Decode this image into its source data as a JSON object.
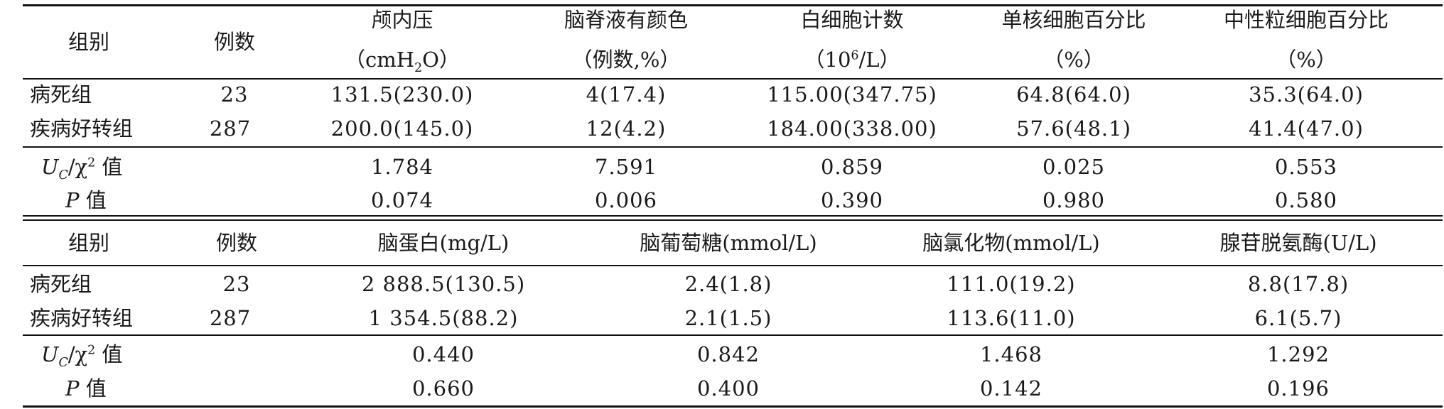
{
  "table1": {
    "header": {
      "group": "组别",
      "count": "例数",
      "icp": {
        "line1": "颅内压",
        "unit_pre": "（cmH",
        "unit_sub": "2",
        "unit_post": "O）"
      },
      "csf_color": {
        "line1": "脑脊液有颜色",
        "line2": "（例数,%）"
      },
      "wbc": {
        "line1": "白细胞计数",
        "unit_pre": "（10",
        "unit_sup": "6",
        "unit_post": "/L）"
      },
      "mono": {
        "line1": "单核细胞百分比",
        "line2": "（%）"
      },
      "neut": {
        "line1": "中性粒细胞百分比",
        "line2": "（%）"
      }
    },
    "rows": [
      {
        "group": "病死组",
        "count": "23",
        "icp": "131.5(230.0)",
        "csf_color": "4(17.4)",
        "wbc": "115.00(347.75)",
        "mono": "64.8(64.0)",
        "neut": "35.3(64.0)"
      },
      {
        "group": "疾病好转组",
        "count": "287",
        "icp": "200.0(145.0)",
        "csf_color": "12(4.2)",
        "wbc": "184.00(338.00)",
        "mono": "57.6(48.1)",
        "neut": "41.4(47.0)"
      }
    ],
    "stat": {
      "label_u": "U",
      "label_c": "C",
      "label_rest": "/χ",
      "label_sup": "2",
      "label_tail": " 值",
      "icp": "1.784",
      "csf_color": "7.591",
      "wbc": "0.859",
      "mono": "0.025",
      "neut": "0.553"
    },
    "p": {
      "label_p": "P",
      "label_tail": " 值",
      "icp": "0.074",
      "csf_color": "0.006",
      "wbc": "0.390",
      "mono": "0.980",
      "neut": "0.580"
    }
  },
  "table2": {
    "header": {
      "group": "组别",
      "count": "例数",
      "protein": "脑蛋白(mg/L)",
      "glucose": "脑葡萄糖(mmol/L)",
      "chloride": "脑氯化物(mmol/L)",
      "ada": "腺苷脱氨酶(U/L)"
    },
    "rows": [
      {
        "group": "病死组",
        "count": "23",
        "protein": "2 888.5(130.5)",
        "glucose": "2.4(1.8)",
        "chloride": "111.0(19.2)",
        "ada": "8.8(17.8)"
      },
      {
        "group": "疾病好转组",
        "count": "287",
        "protein": "1 354.5(88.2)",
        "glucose": "2.1(1.5)",
        "chloride": "113.6(11.0)",
        "ada": "6.1(5.7)"
      }
    ],
    "stat": {
      "protein": "0.440",
      "glucose": "0.842",
      "chloride": "1.468",
      "ada": "1.292"
    },
    "p": {
      "protein": "0.660",
      "glucose": "0.400",
      "chloride": "0.142",
      "ada": "0.196"
    }
  }
}
